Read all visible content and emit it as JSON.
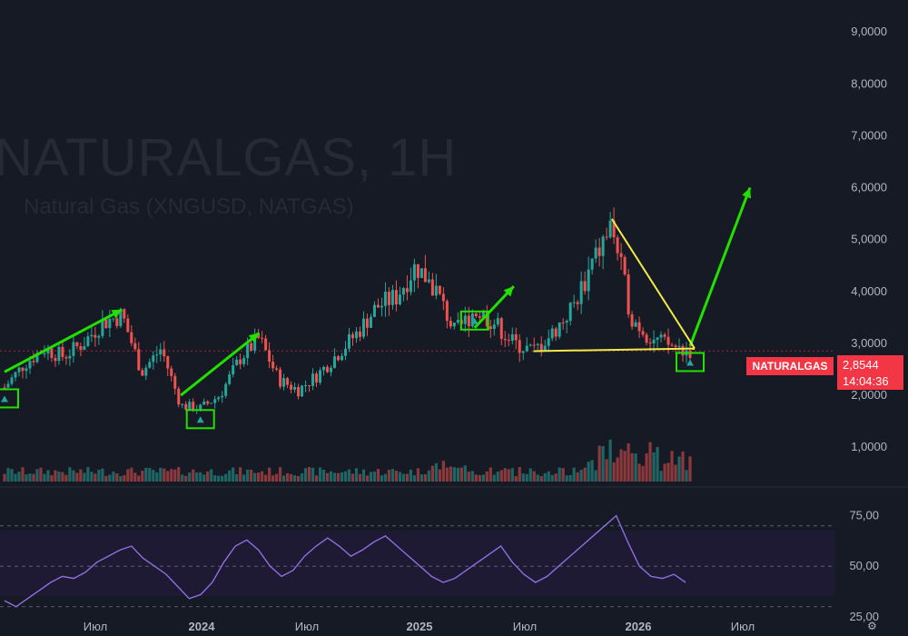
{
  "watermark": {
    "symbol": "NATURALGAS, 1H",
    "description": "Natural Gas (XNGUSD, NATGAS)"
  },
  "price_scale_labels": [
    "9,0000",
    "8,0000",
    "7,0000",
    "6,0000",
    "5,0000",
    "4,0000",
    "3,0000",
    "2,0000",
    "1,0000"
  ],
  "rsi_scale_labels": [
    "75,00",
    "50,00",
    "25,00"
  ],
  "time_labels": [
    "Июл",
    "2024",
    "Июл",
    "2025",
    "Июл",
    "2026",
    "Июл"
  ],
  "current_price": {
    "symbol": "NATURALGAS",
    "price": "2,8544",
    "countdown": "14:04:36"
  },
  "settings_icon": "gear-icon",
  "colors": {
    "bg": "#161a25",
    "up": "#26a69a",
    "down": "#ef5350",
    "annotation": "#22e000",
    "triangle": "#f5e94a",
    "rsi": "#8e6fe0",
    "badge": "#f23645"
  },
  "chart_data": [
    {
      "type": "candlestick",
      "title": "NATURALGAS, 1H",
      "ylim": [
        0.6,
        9.3
      ],
      "x_ticks": [
        "Июл",
        "2024",
        "Июл",
        "2025",
        "Июл",
        "2026",
        "Июл"
      ],
      "key_points": [
        {
          "x": "2023-05",
          "y": 2.15
        },
        {
          "x": "2023-06",
          "y": 2.6
        },
        {
          "x": "2023-07",
          "y": 2.9
        },
        {
          "x": "2023-08",
          "y": 2.75
        },
        {
          "x": "2023-09",
          "y": 3.0
        },
        {
          "x": "2023-10",
          "y": 3.4
        },
        {
          "x": "2023-11",
          "y": 3.55
        },
        {
          "x": "2023-12",
          "y": 2.45
        },
        {
          "x": "2024-01",
          "y": 2.9
        },
        {
          "x": "2024-02",
          "y": 1.8
        },
        {
          "x": "2024-03",
          "y": 1.75
        },
        {
          "x": "2024-04",
          "y": 2.0
        },
        {
          "x": "2024-05",
          "y": 2.7
        },
        {
          "x": "2024-06",
          "y": 3.1
        },
        {
          "x": "2024-07",
          "y": 2.3
        },
        {
          "x": "2024-08",
          "y": 2.1
        },
        {
          "x": "2024-09",
          "y": 2.4
        },
        {
          "x": "2024-10",
          "y": 2.8
        },
        {
          "x": "2024-11",
          "y": 3.2
        },
        {
          "x": "2024-12",
          "y": 3.7
        },
        {
          "x": "2025-01",
          "y": 3.9
        },
        {
          "x": "2025-02",
          "y": 4.5
        },
        {
          "x": "2025-03",
          "y": 4.05
        },
        {
          "x": "2025-04",
          "y": 3.2
        },
        {
          "x": "2025-05",
          "y": 3.65
        },
        {
          "x": "2025-06",
          "y": 3.4
        },
        {
          "x": "2025-07",
          "y": 3.0
        },
        {
          "x": "2025-08",
          "y": 2.85
        },
        {
          "x": "2025-09",
          "y": 3.2
        },
        {
          "x": "2025-10",
          "y": 3.7
        },
        {
          "x": "2025-11",
          "y": 4.5
        },
        {
          "x": "2025-12",
          "y": 5.3
        },
        {
          "x": "2025-12b",
          "y": 3.5
        },
        {
          "x": "2026-01",
          "y": 3.1
        },
        {
          "x": "2026-01b",
          "y": 2.95
        },
        {
          "x": "2026-02",
          "y": 2.85
        }
      ],
      "current": 2.8544,
      "annotations": {
        "arrows": [
          {
            "from": [
              "2023-05",
              2.45
            ],
            "to": [
              "2023-11",
              3.65
            ]
          },
          {
            "from": [
              "2024-02",
              2.0
            ],
            "to": [
              "2024-06",
              3.2
            ]
          },
          {
            "from": [
              "2025-05",
              3.3
            ],
            "to": [
              "2025-07",
              4.1
            ]
          },
          {
            "from": [
              "2026-02",
              2.95
            ],
            "to": [
              "2026-06",
              6.0
            ]
          }
        ],
        "triangle": {
          "apex": [
            "2025-12",
            5.4
          ],
          "low_left": [
            "2025-08",
            2.85
          ],
          "low_right": [
            "2026-02",
            2.9
          ]
        },
        "boxes": [
          "2023-05",
          "2024-03",
          "2025-05",
          "2026-02"
        ]
      }
    },
    {
      "type": "line",
      "title": "RSI",
      "ylim": [
        20,
        82
      ],
      "levels": [
        70,
        50,
        30
      ],
      "values": [
        33,
        30,
        34,
        38,
        42,
        45,
        44,
        47,
        52,
        55,
        58,
        60,
        54,
        50,
        46,
        40,
        34,
        36,
        42,
        52,
        60,
        63,
        58,
        50,
        45,
        48,
        55,
        60,
        64,
        60,
        55,
        58,
        62,
        65,
        60,
        55,
        50,
        45,
        42,
        44,
        48,
        52,
        56,
        60,
        52,
        46,
        42,
        45,
        50,
        55,
        60,
        65,
        70,
        75,
        62,
        50,
        45,
        44,
        46,
        42
      ]
    }
  ]
}
